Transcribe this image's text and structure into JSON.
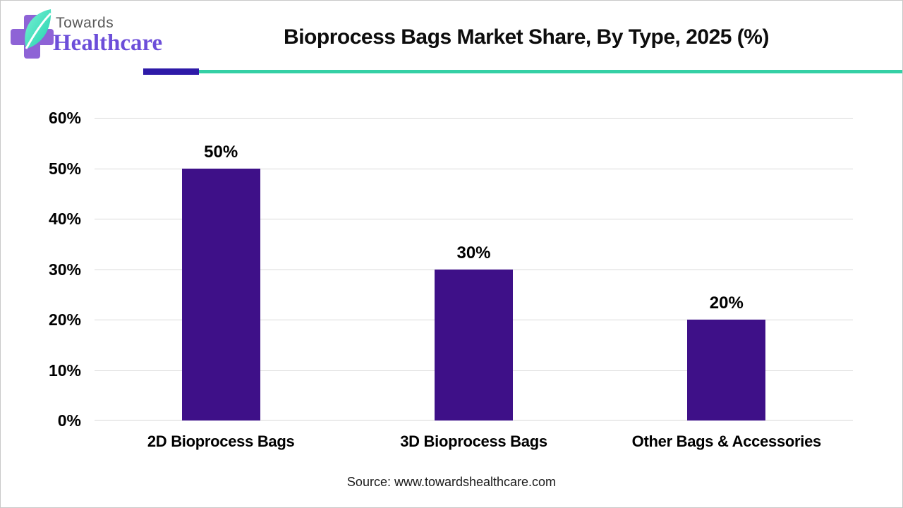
{
  "brand": {
    "towards": "Towards",
    "healthcare": "Healthcare",
    "cross_color": "#8E63D6",
    "leaf_color": "#1FD3AE"
  },
  "header": {
    "title": "Bioprocess Bags Market Share, By Type, 2025 (%)",
    "underline_accent_color": "#2E1AA8",
    "underline_line_color": "#35D0A5"
  },
  "chart_data": {
    "type": "bar",
    "title": "Bioprocess Bags Market Share, By Type, 2025 (%)",
    "categories": [
      "2D Bioprocess Bags",
      "3D Bioprocess Bags",
      "Other Bags & Accessories"
    ],
    "values": [
      50,
      30,
      20
    ],
    "value_labels": [
      "50%",
      "30%",
      "20%"
    ],
    "yticks": [
      0,
      10,
      20,
      30,
      40,
      50,
      60
    ],
    "ytick_labels": [
      "0%",
      "10%",
      "20%",
      "30%",
      "40%",
      "50%",
      "60%"
    ],
    "ylim": [
      0,
      60
    ],
    "xlabel": "",
    "ylabel": "",
    "bar_color": "#3E1088",
    "grid": true,
    "gridline_color": "#d9d9d9",
    "legend": "none"
  },
  "footer": {
    "source": "Source: www.towardshealthcare.com"
  }
}
